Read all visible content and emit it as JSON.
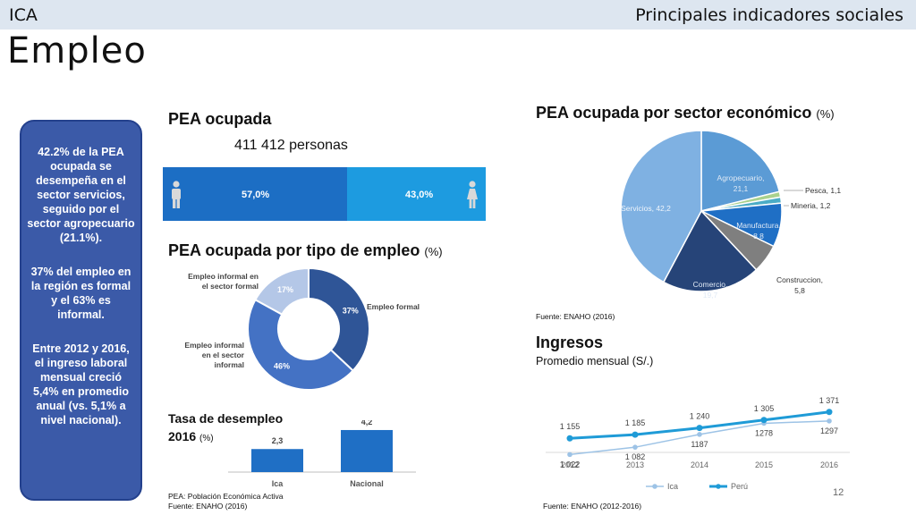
{
  "header": {
    "region": "ICA",
    "title": "Principales indicadores sociales",
    "page_title": "Empleo"
  },
  "sidebar": {
    "p1": "42.2% de la PEA ocupada se desempeña en el sector servicios, seguido por el sector agropecuario (21.1%).",
    "p2": "37% del empleo en la región es formal y el 63% es informal.",
    "p3": "Entre 2012 y 2016, el ingreso laboral mensual creció 5,4% en promedio anual (vs. 5,1% a nivel nacional)."
  },
  "pea": {
    "title": "PEA ocupada",
    "total": "411 412 personas",
    "men_pct": "57,0%",
    "women_pct": "43,0%",
    "men_share": 57.0,
    "women_share": 43.0,
    "men_icon": "man-icon",
    "women_icon": "woman-icon"
  },
  "colors": {
    "men": "#1c6ec4",
    "women": "#1d9be0",
    "sidebar": "#3b5aa8",
    "topbar": "#dde6f0"
  },
  "tipo_empleo": {
    "title": "PEA ocupada por tipo de empleo",
    "unit": "(%)"
  },
  "desempleo": {
    "title_line1": "Tasa de desempleo",
    "title_line2": "2016",
    "unit": "(%)",
    "note_line1": "PEA: Población Económica Activa",
    "note_line2": "Fuente: ENAHO (2016)"
  },
  "sector": {
    "title": "PEA ocupada por sector económico",
    "unit": "(%)",
    "source": "Fuente: ENAHO (2016)"
  },
  "ingresos": {
    "title": "Ingresos",
    "subtitle": "Promedio mensual (S/.)",
    "source": "Fuente: ENAHO (2012-2016)"
  },
  "page_number": "12",
  "chart_data": [
    {
      "type": "pie",
      "variant": "donut",
      "categories": [
        "Empleo formal",
        "Empleo informal en el sector informal",
        "Empleo informal en el sector formal"
      ],
      "values": [
        37,
        46,
        17
      ],
      "labels": [
        "37%",
        "46%",
        "17%"
      ],
      "colors": [
        "#2f5597",
        "#4472c4",
        "#b4c7e7"
      ]
    },
    {
      "type": "bar",
      "categories": [
        "Ica",
        "Nacional"
      ],
      "values": [
        2.3,
        4.2
      ],
      "data_labels": [
        "2,3",
        "4,2"
      ],
      "ylim": [
        0,
        5
      ],
      "color": "#1f6fc5"
    },
    {
      "type": "pie",
      "categories": [
        "Agropecuario",
        "Pesca",
        "Mineria",
        "Manufactura",
        "Construccion",
        "Comercio",
        "Servicios"
      ],
      "values": [
        21.1,
        1.1,
        1.2,
        8.8,
        5.8,
        19.7,
        42.2
      ],
      "data_labels": [
        "Agropecuario, 21,1",
        "Pesca, 1,1",
        "Mineria, 1,2",
        "Manufactura, 8,8",
        "Construccion, 5,8",
        "Comercio, 19,7",
        "Servicios, 42,2"
      ],
      "colors": [
        "#5b9bd5",
        "#a9d18e",
        "#4bacc6",
        "#1f6fc5",
        "#7f7f7f",
        "#264478",
        "#7fb1e2"
      ]
    },
    {
      "type": "line",
      "x": [
        "2012",
        "2013",
        "2014",
        "2015",
        "2016"
      ],
      "series": [
        {
          "name": "Ica",
          "values": [
            1022,
            1082,
            1187,
            1278,
            1297
          ],
          "labels": [
            "1 022",
            "1 082",
            "1187",
            "1278",
            "1297"
          ],
          "color": "#9dc3e6"
        },
        {
          "name": "Perú",
          "values": [
            1155,
            1185,
            1240,
            1305,
            1371
          ],
          "labels": [
            "1 155",
            "1 185",
            "1 240",
            "1 305",
            "1 371"
          ],
          "color": "#1f9bd7"
        }
      ],
      "ylim": [
        900,
        1450
      ],
      "legend": "bottom"
    }
  ]
}
